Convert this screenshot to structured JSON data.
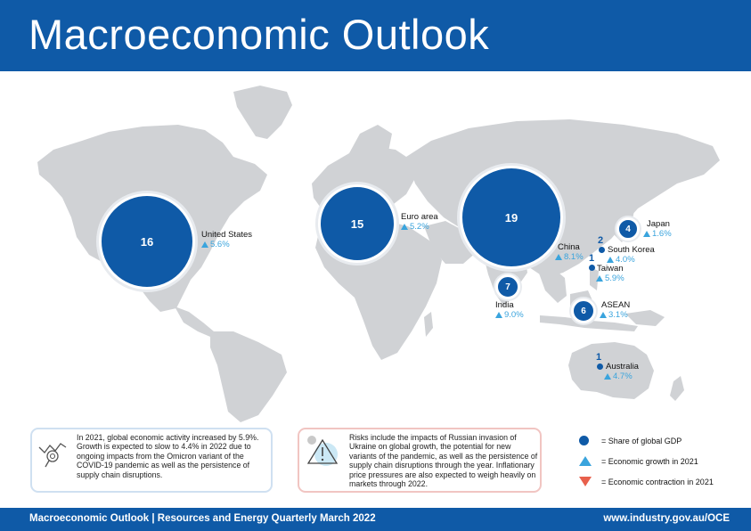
{
  "header": {
    "title": "Macroeconomic Outlook"
  },
  "regions": [
    {
      "name": "United States",
      "share": "16",
      "growth": "5.6%"
    },
    {
      "name": "Euro area",
      "share": "15",
      "growth": "5.2%"
    },
    {
      "name": "China",
      "share": "19",
      "growth": "8.1%"
    },
    {
      "name": "Japan",
      "share": "4",
      "growth": "1.6%"
    },
    {
      "name": "South Korea",
      "share": "2",
      "growth": "4.0%"
    },
    {
      "name": "Taiwan",
      "share": "1",
      "growth": "5.9%"
    },
    {
      "name": "India",
      "share": "7",
      "growth": "9.0%"
    },
    {
      "name": "ASEAN",
      "share": "6",
      "growth": "3.1%"
    },
    {
      "name": "Australia",
      "share": "1",
      "growth": "4.7%"
    }
  ],
  "notes": {
    "activity": "In 2021, global economic activity increased by 5.9%. Growth is expected to slow to 4.4% in 2022 due to ongoing impacts from the Omicron variant of the COVID-19 pandemic  as well as the persistence of supply chain disruptions.",
    "risks": "Risks include the impacts of Russian invasion of Ukraine on global growth, the potential for new variants of the pandemic, as well as the persistence of supply chain disruptions through the year. Inflationary price pressures are also expected to weigh heavily on markets through 2022."
  },
  "legend": {
    "share": "= Share of global GDP",
    "growth": "= Economic growth in 2021",
    "contraction": "= Economic contraction in 2021"
  },
  "colors": {
    "brand": "#0f5aa7",
    "growth": "#3aa4dd",
    "contraction": "#e8604c",
    "land": "#d0d2d5"
  },
  "footer": {
    "left": "Macroeconomic Outlook | Resources and Energy Quarterly March 2022",
    "right": "www.industry.gov.au/OCE"
  }
}
